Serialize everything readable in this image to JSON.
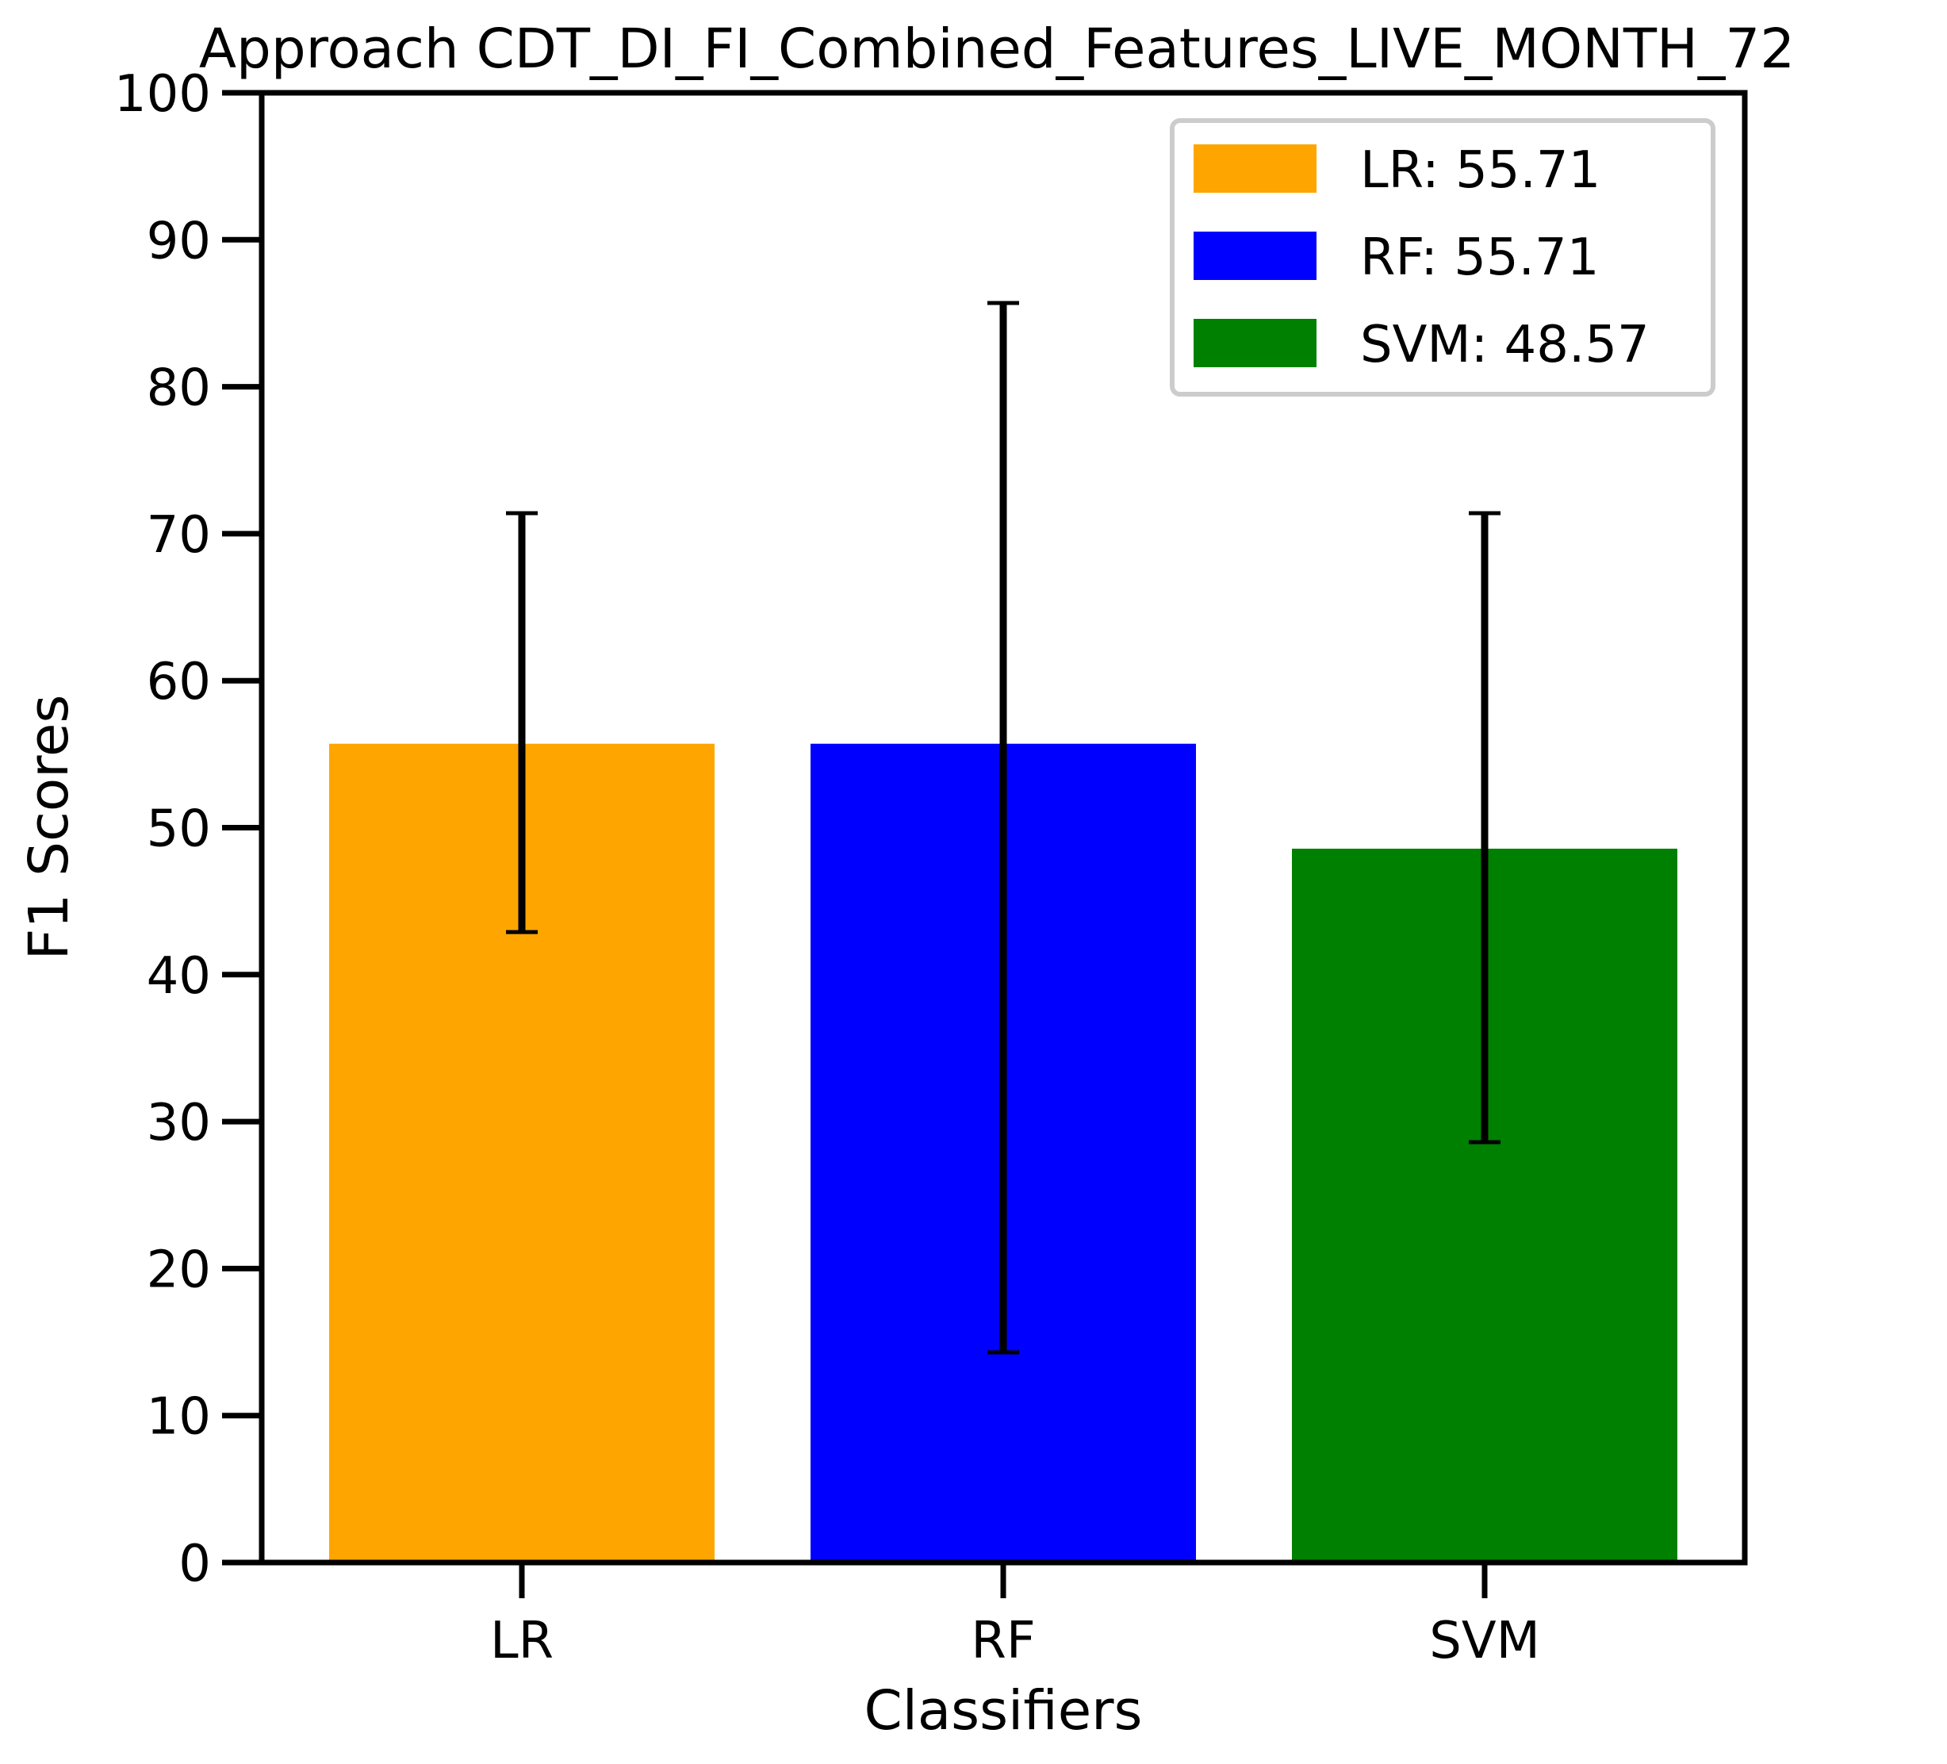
{
  "chart_data": {
    "type": "bar",
    "title": "Approach CDT_DI_FI_Combined_Features_LIVE_MONTH_72",
    "xlabel": "Classifiers",
    "ylabel": "F1 Scores",
    "categories": [
      "LR",
      "RF",
      "SVM"
    ],
    "values": [
      55.71,
      55.71,
      48.57
    ],
    "error_low": [
      42.9,
      14.3,
      28.6
    ],
    "error_high": [
      71.4,
      85.7,
      71.4
    ],
    "colors": [
      "#ffa500",
      "#0000ff",
      "#008000"
    ],
    "ylim": [
      0,
      100
    ],
    "yticks": [
      0,
      10,
      20,
      30,
      40,
      50,
      60,
      70,
      80,
      90,
      100
    ],
    "grid": false,
    "legend": {
      "placement": "top-right",
      "entries": [
        "LR: 55.71",
        "RF: 55.71",
        "SVM: 48.57"
      ]
    }
  }
}
